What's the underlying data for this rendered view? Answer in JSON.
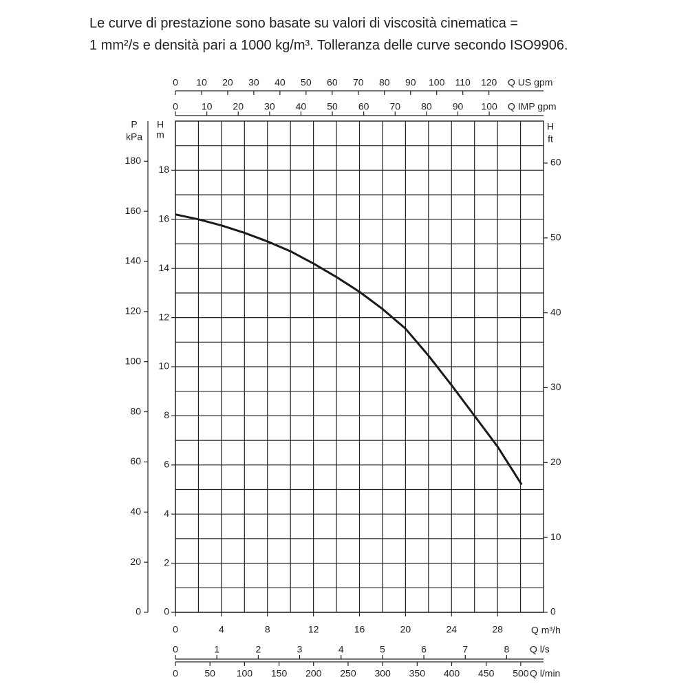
{
  "chart_data": {
    "type": "line",
    "title": [
      "Le curve di prestazione sono basate su valori di viscosità cinematica =",
      "1 mm²/s e densità pari a 1000 kg/m³. Tolleranza delle curve secondo ISO9906."
    ],
    "x": [
      0,
      2,
      4,
      6,
      8,
      10,
      12,
      14,
      16,
      18,
      20,
      22,
      24,
      26,
      28,
      30.1
    ],
    "series": [
      {
        "color": "#1a1a1a",
        "values": [
          16.2,
          16.0,
          15.75,
          15.45,
          15.1,
          14.7,
          14.2,
          13.65,
          13.05,
          12.35,
          11.55,
          10.45,
          9.25,
          8.0,
          6.75,
          5.2
        ]
      }
    ],
    "xlabel": "Q m³/h",
    "ylabel": [
      "H",
      "m"
    ],
    "xlim": [
      0,
      32
    ],
    "xticks": [
      0,
      4,
      8,
      12,
      16,
      20,
      24,
      28
    ],
    "xminor": [
      2,
      6,
      10,
      14,
      18,
      22,
      26,
      30
    ],
    "ylim": [
      0,
      20
    ],
    "yticks": [
      0,
      2,
      4,
      6,
      8,
      10,
      12,
      14,
      16,
      18
    ],
    "yminor": [
      1,
      3,
      5,
      7,
      9,
      11,
      13,
      15,
      17,
      19
    ],
    "grid": true,
    "extra_axes": [
      {
        "side": "left",
        "label": [
          "P",
          "kPa"
        ],
        "lim": [
          0,
          196
        ],
        "ticks": [
          0,
          20,
          40,
          60,
          80,
          100,
          120,
          140,
          160,
          180
        ]
      },
      {
        "side": "right",
        "label": [
          "H",
          "ft"
        ],
        "lim": [
          0,
          65.6
        ],
        "ticks": [
          0,
          10,
          20,
          30,
          40,
          50,
          60
        ]
      },
      {
        "side": "top",
        "label": "Q US gpm",
        "lim": [
          0,
          140.9
        ],
        "ticks": [
          0,
          10,
          20,
          30,
          40,
          50,
          60,
          70,
          80,
          90,
          100,
          110,
          120
        ]
      },
      {
        "side": "top",
        "label": "Q IMP gpm",
        "lim": [
          0,
          117.3
        ],
        "ticks": [
          0,
          10,
          20,
          30,
          40,
          50,
          60,
          70,
          80,
          90,
          100
        ]
      },
      {
        "side": "bottom",
        "label": "Q l/s",
        "lim": [
          0,
          8.89
        ],
        "ticks": [
          0,
          1,
          2,
          3,
          4,
          5,
          6,
          7,
          8
        ]
      },
      {
        "side": "bottom",
        "label": "Q l/min",
        "lim": [
          0,
          533
        ],
        "ticks": [
          0,
          50,
          100,
          150,
          200,
          250,
          300,
          350,
          400,
          450,
          500
        ]
      }
    ]
  }
}
